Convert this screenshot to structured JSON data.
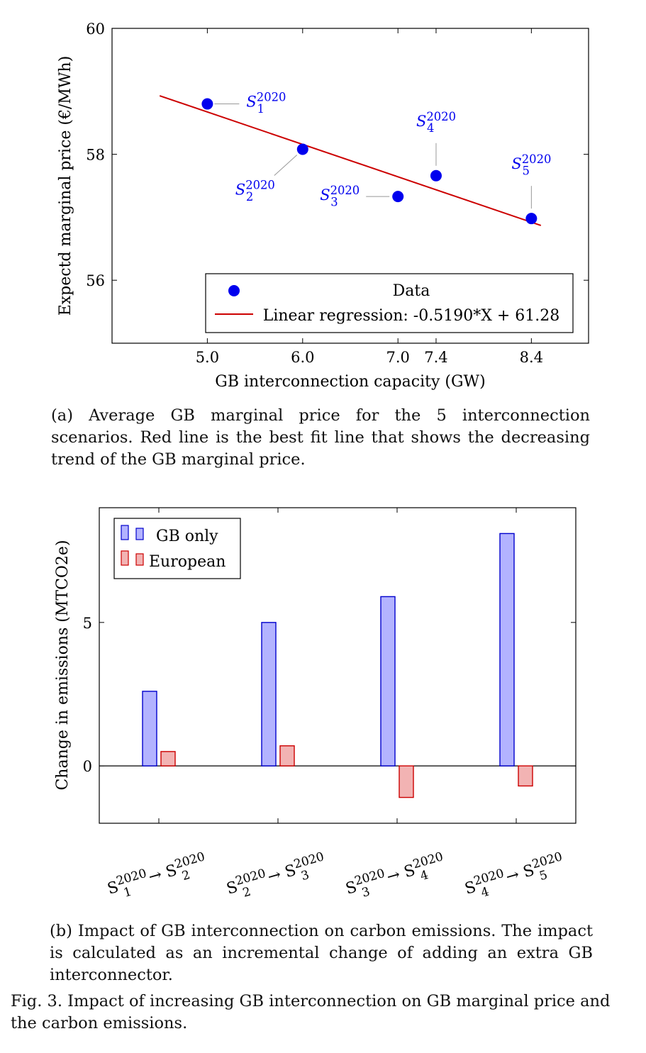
{
  "chart_data": [
    {
      "type": "scatter",
      "xlabel": "GB interconnection capacity (GW)",
      "ylabel": "Expectd marginal price (€/MWh)",
      "xlim": [
        4.0,
        9.0
      ],
      "ylim": [
        55.0,
        60.0
      ],
      "xticks": [
        "5.0",
        "6.0",
        "7.0",
        "7.4",
        "8.4"
      ],
      "yticks": [
        "56",
        "58",
        "60"
      ],
      "legend_position": "bottom-right",
      "series": [
        {
          "name": "Data",
          "color": "#0000ee",
          "points": [
            {
              "x": 5.0,
              "y": 58.8,
              "label_base": "S",
              "label_sub": "1",
              "label_sup": "2020"
            },
            {
              "x": 6.0,
              "y": 58.08,
              "label_base": "S",
              "label_sub": "2",
              "label_sup": "2020"
            },
            {
              "x": 7.0,
              "y": 57.33,
              "label_base": "S",
              "label_sub": "3",
              "label_sup": "2020"
            },
            {
              "x": 7.4,
              "y": 57.66,
              "label_base": "S",
              "label_sub": "4",
              "label_sup": "2020"
            },
            {
              "x": 8.4,
              "y": 56.98,
              "label_base": "S",
              "label_sub": "5",
              "label_sup": "2020"
            }
          ]
        },
        {
          "name": "Linear regression: -0.5190*X + 61.28",
          "color": "#cc0000",
          "line": {
            "x": [
              4.5,
              8.5
            ],
            "y": [
              58.93,
              56.87
            ]
          }
        }
      ]
    },
    {
      "type": "bar",
      "ylabel": "Change in emissions (MTCO2e)",
      "ylim": [
        -2.0,
        9.0
      ],
      "yticks": [
        "0",
        "5"
      ],
      "legend_position": "top-left",
      "categories": [
        {
          "from_sub": "1",
          "to_sub": "2",
          "sup": "2020",
          "base": "S",
          "arrow": "→"
        },
        {
          "from_sub": "2",
          "to_sub": "3",
          "sup": "2020",
          "base": "S",
          "arrow": "→"
        },
        {
          "from_sub": "3",
          "to_sub": "4",
          "sup": "2020",
          "base": "S",
          "arrow": "→"
        },
        {
          "from_sub": "4",
          "to_sub": "5",
          "sup": "2020",
          "base": "S",
          "arrow": "→"
        }
      ],
      "series": [
        {
          "name": "GB only",
          "values": [
            2.6,
            5.0,
            5.9,
            8.1
          ],
          "fill": "#b3b3ff",
          "stroke": "#0000cc"
        },
        {
          "name": "European",
          "values": [
            0.5,
            0.7,
            -1.1,
            -0.7
          ],
          "fill": "#f2b3b3",
          "stroke": "#cc0000"
        }
      ]
    }
  ],
  "captions": {
    "a": "(a) Average GB marginal price for the 5 interconnection scenarios. Red line is the best fit line that shows the decreasing trend of the GB marginal price.",
    "b": "(b) Impact of GB interconnection on carbon emissions. The impact is calculated as an incremental change of adding an extra GB interconnector.",
    "figure": "Fig. 3.  Impact of increasing GB interconnection on GB marginal price and the carbon emissions."
  }
}
